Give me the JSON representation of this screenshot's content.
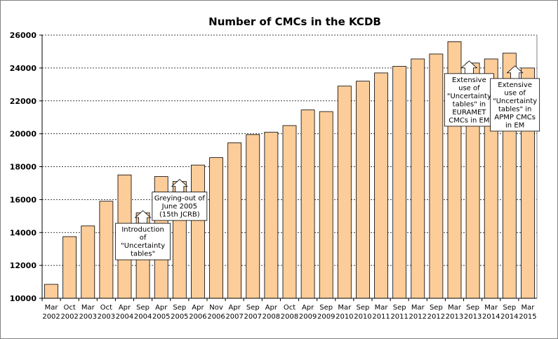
{
  "chart_data": {
    "type": "bar",
    "title": "Number of CMCs in the KCDB",
    "xlabel": "",
    "ylabel": "",
    "ylim": [
      10000,
      26000
    ],
    "yticks": [
      10000,
      12000,
      14000,
      16000,
      18000,
      20000,
      22000,
      24000,
      26000
    ],
    "grid": true,
    "bar_color": "#FCCC99",
    "categories": [
      [
        "Mar",
        "2002"
      ],
      [
        "Oct",
        "2002"
      ],
      [
        "Mar",
        "2003"
      ],
      [
        "Oct",
        "2003"
      ],
      [
        "Apr",
        "2004"
      ],
      [
        "Sep",
        "2004"
      ],
      [
        "Apr",
        "2005"
      ],
      [
        "Sep",
        "2005"
      ],
      [
        "Apr",
        "2006"
      ],
      [
        "Nov",
        "2006"
      ],
      [
        "Apr",
        "2007"
      ],
      [
        "Sep",
        "2007"
      ],
      [
        "Apr",
        "2008"
      ],
      [
        "Oct",
        "2008"
      ],
      [
        "Apr",
        "2009"
      ],
      [
        "Sep",
        "2009"
      ],
      [
        "Mar",
        "2010"
      ],
      [
        "Sep",
        "2010"
      ],
      [
        "Mar",
        "2011"
      ],
      [
        "Sep",
        "2011"
      ],
      [
        "Mar",
        "2012"
      ],
      [
        "Sep",
        "2012"
      ],
      [
        "Mar",
        "2013"
      ],
      [
        "Sep",
        "2013"
      ],
      [
        "Mar",
        "2014"
      ],
      [
        "Sep",
        "2014"
      ],
      [
        "Mar",
        "2015"
      ]
    ],
    "values": [
      10850,
      13750,
      14400,
      15900,
      17500,
      15200,
      17400,
      17100,
      18100,
      18550,
      19450,
      19950,
      20100,
      20500,
      21450,
      21350,
      22900,
      23200,
      23700,
      24100,
      24550,
      24850,
      25600,
      24300,
      24550,
      24900,
      24000
    ],
    "annotations": [
      {
        "bar_index": 5,
        "lines": [
          "Introduction",
          "of",
          "\"Uncertainty",
          "tables\""
        ]
      },
      {
        "bar_index": 7,
        "lines": [
          "Greying-out of",
          "June 2005",
          "(15th JCRB)"
        ]
      },
      {
        "bar_index": 22.8,
        "lines": [
          "Extensive",
          "use of",
          "\"Uncertainty",
          "tables\" in",
          "EURAMET",
          "CMCs in EM"
        ]
      },
      {
        "bar_index": 25.3,
        "lines": [
          "Extensive",
          "use of",
          "\"Uncertainty",
          "tables\" in",
          "APMP CMCs",
          "in EM"
        ]
      }
    ]
  }
}
